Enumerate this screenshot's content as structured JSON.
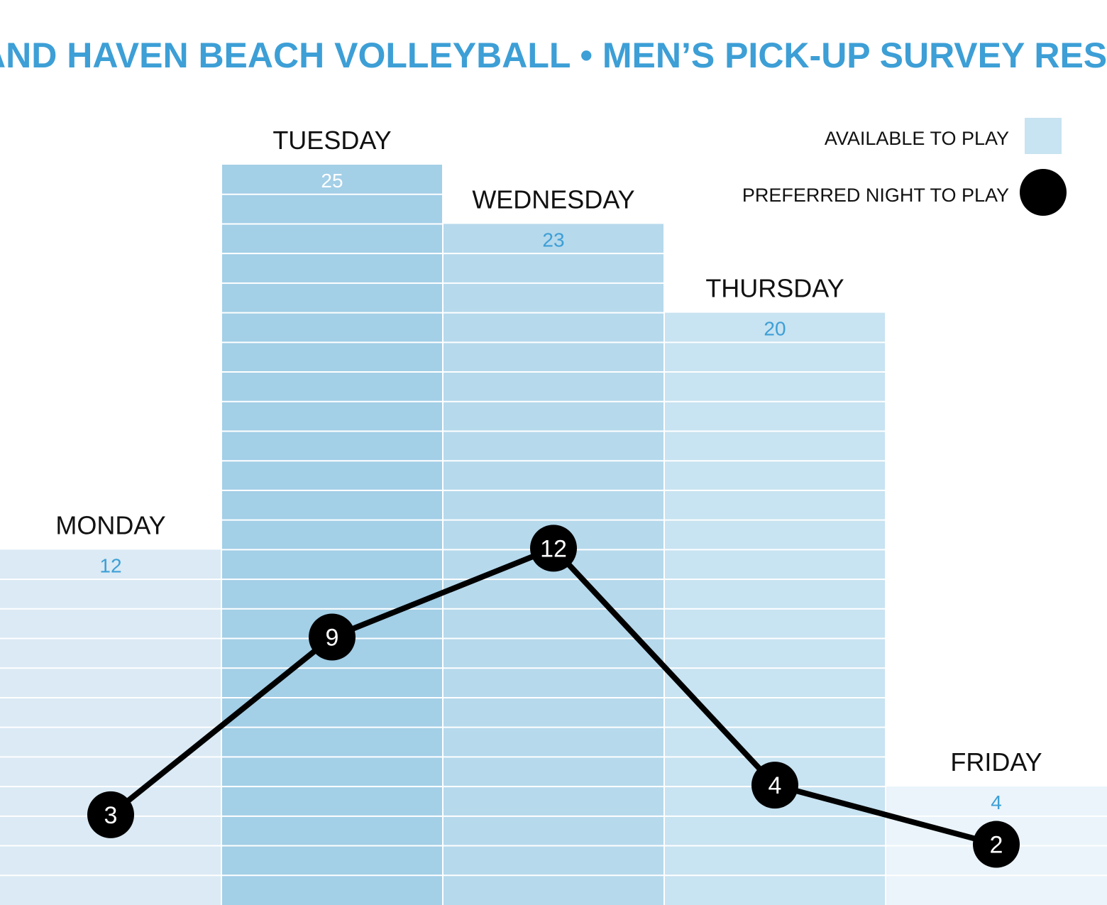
{
  "chart_data": {
    "type": "bar",
    "title": "GRAND HAVEN BEACH VOLLEYBALL • MEN’S PICK-UP SURVEY RESULTS",
    "categories": [
      "MONDAY",
      "TUESDAY",
      "WEDNESDAY",
      "THURSDAY",
      "FRIDAY"
    ],
    "series": [
      {
        "name": "AVAILABLE TO PLAY",
        "type": "bar",
        "values": [
          12,
          25,
          23,
          20,
          4
        ],
        "colors": [
          "#dbeaf4",
          "#a3cfe7",
          "#b6d9ec",
          "#c8e3f1",
          "#eaf4fa"
        ]
      },
      {
        "name": "PREFERRED NIGHT TO PLAY",
        "type": "line",
        "values": [
          3,
          9,
          12,
          4,
          2
        ],
        "color": "#000000"
      }
    ],
    "value_label_colors": [
      "#3d9fd6",
      "#ffffff",
      "#3d9fd6",
      "#3d9fd6",
      "#3d9fd6"
    ],
    "ylim": [
      0,
      30
    ],
    "grid": true,
    "legend_position": "top-right",
    "title_color": "#3d9fd6"
  }
}
